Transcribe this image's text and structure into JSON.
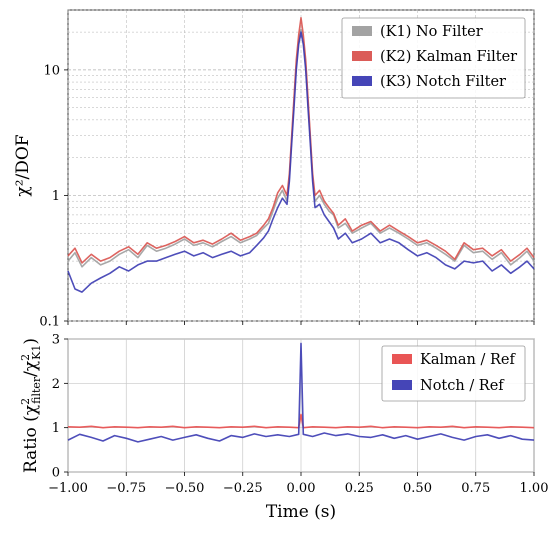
{
  "chart_data": [
    {
      "type": "line",
      "yscale": "log",
      "xlim": [
        -1.0,
        1.0
      ],
      "ylim": [
        0.1,
        30
      ],
      "ylabel": "χ²/DOF",
      "yticks": [
        0.1,
        1,
        10
      ],
      "yticklabels": [
        "0.1",
        "1",
        "10"
      ],
      "grid": true,
      "legend_position": "top-right",
      "x": [
        -1.0,
        -0.97,
        -0.94,
        -0.9,
        -0.86,
        -0.82,
        -0.78,
        -0.74,
        -0.7,
        -0.66,
        -0.62,
        -0.58,
        -0.54,
        -0.5,
        -0.46,
        -0.42,
        -0.38,
        -0.34,
        -0.3,
        -0.26,
        -0.22,
        -0.19,
        -0.16,
        -0.14,
        -0.12,
        -0.1,
        -0.08,
        -0.06,
        -0.05,
        -0.04,
        -0.03,
        -0.02,
        -0.01,
        0.0,
        0.01,
        0.02,
        0.03,
        0.04,
        0.05,
        0.06,
        0.08,
        0.1,
        0.12,
        0.14,
        0.16,
        0.19,
        0.22,
        0.26,
        0.3,
        0.34,
        0.38,
        0.42,
        0.46,
        0.5,
        0.54,
        0.58,
        0.62,
        0.66,
        0.7,
        0.74,
        0.78,
        0.82,
        0.86,
        0.9,
        0.94,
        0.97,
        1.0
      ],
      "series": [
        {
          "name": "(K1) No Filter",
          "color": "#9e9e9e",
          "values": [
            0.3,
            0.35,
            0.27,
            0.32,
            0.28,
            0.3,
            0.34,
            0.37,
            0.32,
            0.4,
            0.36,
            0.38,
            0.41,
            0.45,
            0.4,
            0.42,
            0.39,
            0.43,
            0.47,
            0.42,
            0.45,
            0.48,
            0.55,
            0.6,
            0.75,
            0.95,
            1.1,
            0.9,
            1.4,
            2.8,
            5.5,
            11,
            17,
            21,
            17,
            11,
            5.5,
            2.8,
            1.4,
            0.9,
            1.0,
            0.85,
            0.75,
            0.7,
            0.55,
            0.6,
            0.5,
            0.55,
            0.6,
            0.5,
            0.55,
            0.5,
            0.45,
            0.4,
            0.42,
            0.38,
            0.34,
            0.3,
            0.4,
            0.35,
            0.36,
            0.31,
            0.35,
            0.28,
            0.32,
            0.36,
            0.3
          ]
        },
        {
          "name": "(K2) Kalman Filter",
          "color": "#d9534f",
          "values": [
            0.33,
            0.38,
            0.29,
            0.34,
            0.3,
            0.32,
            0.36,
            0.39,
            0.34,
            0.42,
            0.38,
            0.4,
            0.43,
            0.47,
            0.42,
            0.44,
            0.41,
            0.45,
            0.5,
            0.44,
            0.47,
            0.5,
            0.58,
            0.65,
            0.8,
            1.05,
            1.2,
            1.0,
            1.5,
            3.0,
            6.0,
            12,
            19,
            26,
            19,
            12,
            6.0,
            3.0,
            1.5,
            1.0,
            1.1,
            0.9,
            0.8,
            0.72,
            0.58,
            0.65,
            0.52,
            0.58,
            0.62,
            0.52,
            0.58,
            0.52,
            0.47,
            0.42,
            0.44,
            0.4,
            0.36,
            0.31,
            0.42,
            0.37,
            0.38,
            0.33,
            0.37,
            0.3,
            0.34,
            0.38,
            0.32
          ]
        },
        {
          "name": "(K3) Notch Filter",
          "color": "#3b3bb3",
          "values": [
            0.25,
            0.18,
            0.17,
            0.2,
            0.22,
            0.24,
            0.27,
            0.25,
            0.28,
            0.3,
            0.3,
            0.32,
            0.34,
            0.36,
            0.33,
            0.35,
            0.32,
            0.34,
            0.36,
            0.33,
            0.35,
            0.4,
            0.46,
            0.52,
            0.65,
            0.8,
            0.95,
            0.85,
            1.3,
            2.6,
            5.0,
            10,
            16,
            20,
            16,
            10,
            5.0,
            2.6,
            1.3,
            0.8,
            0.85,
            0.7,
            0.62,
            0.55,
            0.45,
            0.5,
            0.42,
            0.45,
            0.5,
            0.42,
            0.45,
            0.42,
            0.37,
            0.33,
            0.35,
            0.32,
            0.28,
            0.26,
            0.3,
            0.29,
            0.3,
            0.25,
            0.28,
            0.24,
            0.27,
            0.3,
            0.26
          ]
        }
      ]
    },
    {
      "type": "line",
      "xlim": [
        -1.0,
        1.0
      ],
      "ylim": [
        0,
        3
      ],
      "xlabel": "Time (s)",
      "ylabel": "Ratio (χ²filter/χ²K1)",
      "ylabel_parts": {
        "prefix": "Ratio (χ",
        "sub1": "filter",
        "mid": "/χ",
        "sub2": "K1",
        "suffix": ")"
      },
      "xticks": [
        -1.0,
        -0.75,
        -0.5,
        -0.25,
        0.0,
        0.25,
        0.5,
        0.75,
        1.0
      ],
      "xticklabels": [
        "−1.00",
        "−0.75",
        "−0.50",
        "−0.25",
        "0.00",
        "0.25",
        "0.50",
        "0.75",
        "1.00"
      ],
      "yticks": [
        0,
        1,
        2,
        3
      ],
      "yticklabels": [
        "0",
        "1",
        "2",
        "3"
      ],
      "grid": true,
      "legend_position": "top-right",
      "x": [
        -1.0,
        -0.95,
        -0.9,
        -0.85,
        -0.8,
        -0.75,
        -0.7,
        -0.65,
        -0.6,
        -0.55,
        -0.5,
        -0.45,
        -0.4,
        -0.35,
        -0.3,
        -0.25,
        -0.2,
        -0.15,
        -0.1,
        -0.05,
        -0.01,
        0.0,
        0.01,
        0.05,
        0.1,
        0.15,
        0.2,
        0.25,
        0.3,
        0.35,
        0.4,
        0.45,
        0.5,
        0.55,
        0.6,
        0.65,
        0.7,
        0.75,
        0.8,
        0.85,
        0.9,
        0.95,
        1.0
      ],
      "series": [
        {
          "name": "Kalman / Ref",
          "color": "#e84c4c",
          "values": [
            1.02,
            1.01,
            1.03,
            1.0,
            1.02,
            1.01,
            1.0,
            1.02,
            1.01,
            1.03,
            1.0,
            1.02,
            1.01,
            1.0,
            1.02,
            1.01,
            1.03,
            1.0,
            1.02,
            1.01,
            1.0,
            1.3,
            1.0,
            1.02,
            1.01,
            1.0,
            1.02,
            1.01,
            1.03,
            1.0,
            1.02,
            1.01,
            1.0,
            1.02,
            1.01,
            1.03,
            1.0,
            1.02,
            1.01,
            1.0,
            1.02,
            1.01,
            1.0
          ]
        },
        {
          "name": "Notch / Ref",
          "color": "#3b3bb3",
          "values": [
            0.72,
            0.85,
            0.78,
            0.7,
            0.82,
            0.76,
            0.68,
            0.74,
            0.8,
            0.72,
            0.78,
            0.84,
            0.76,
            0.7,
            0.82,
            0.78,
            0.86,
            0.8,
            0.84,
            0.8,
            0.85,
            2.9,
            0.85,
            0.8,
            0.88,
            0.82,
            0.86,
            0.8,
            0.78,
            0.84,
            0.76,
            0.82,
            0.74,
            0.8,
            0.86,
            0.78,
            0.72,
            0.8,
            0.84,
            0.76,
            0.82,
            0.74,
            0.72
          ]
        }
      ]
    }
  ]
}
